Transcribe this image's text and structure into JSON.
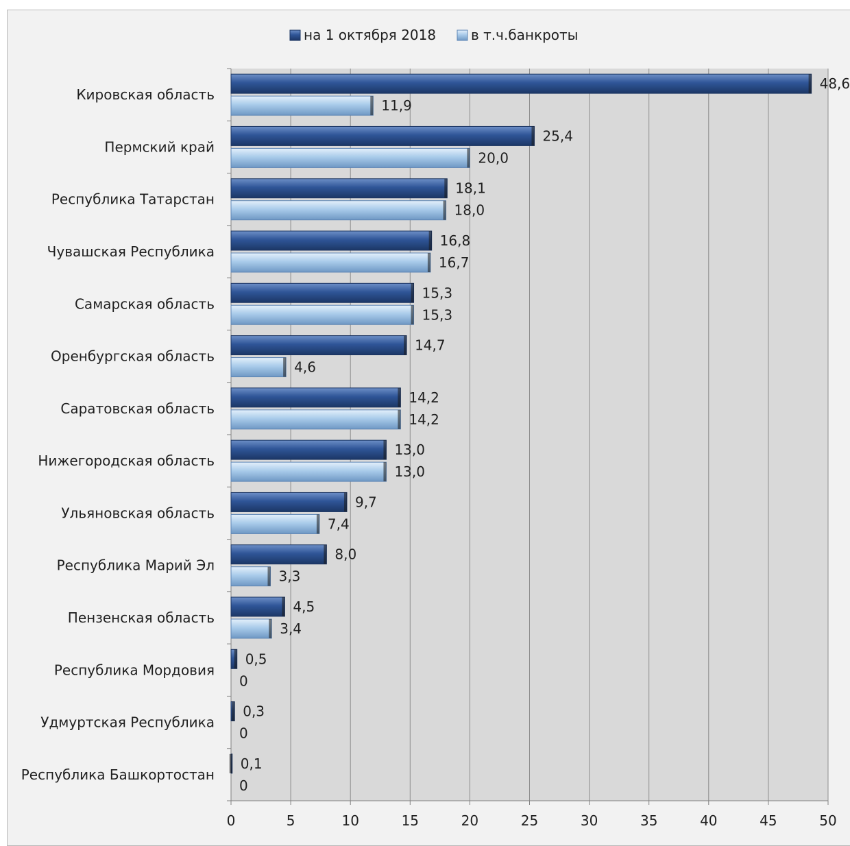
{
  "chart_data": {
    "type": "bar",
    "orientation": "horizontal",
    "categories": [
      "Кировская область",
      "Пермский край",
      "Республика Татарстан",
      "Чувашская Республика",
      "Самарская область",
      "Оренбургская область",
      "Саратовская область",
      "Нижегородская область",
      "Ульяновская область",
      "Республика Марий Эл",
      "Пензенская область",
      "Республика Мордовия",
      "Удмуртская Республика",
      "Республика Башкортостан"
    ],
    "series": [
      {
        "name": "на 1 октября 2018",
        "color": "#2f5597",
        "values": [
          48.6,
          25.4,
          18.1,
          16.8,
          15.3,
          14.7,
          14.2,
          13.0,
          9.7,
          8.0,
          4.5,
          0.5,
          0.3,
          0.1
        ],
        "labels": [
          "48,6",
          "25,4",
          "18,1",
          "16,8",
          "15,3",
          "14,7",
          "14,2",
          "13,0",
          "9,7",
          "8,0",
          "4,5",
          "0,5",
          "0,3",
          "0,1"
        ]
      },
      {
        "name": "в т.ч.банкроты",
        "color": "#9dc3e6",
        "values": [
          11.9,
          20.0,
          18.0,
          16.7,
          15.3,
          4.6,
          14.2,
          13.0,
          7.4,
          3.3,
          3.4,
          0,
          0,
          0
        ],
        "labels": [
          "11,9",
          "20,0",
          "18,0",
          "16,7",
          "15,3",
          "4,6",
          "14,2",
          "13,0",
          "7,4",
          "3,3",
          "3,4",
          "0",
          "0",
          "0"
        ]
      }
    ],
    "xlim": [
      0,
      50
    ],
    "xticks": [
      0,
      5,
      10,
      15,
      20,
      25,
      30,
      35,
      40,
      45,
      50
    ],
    "grid": "vertical",
    "legend_position": "top-center",
    "plot_background": "#d9d9d9",
    "frame_background": "#f2f2f2"
  }
}
